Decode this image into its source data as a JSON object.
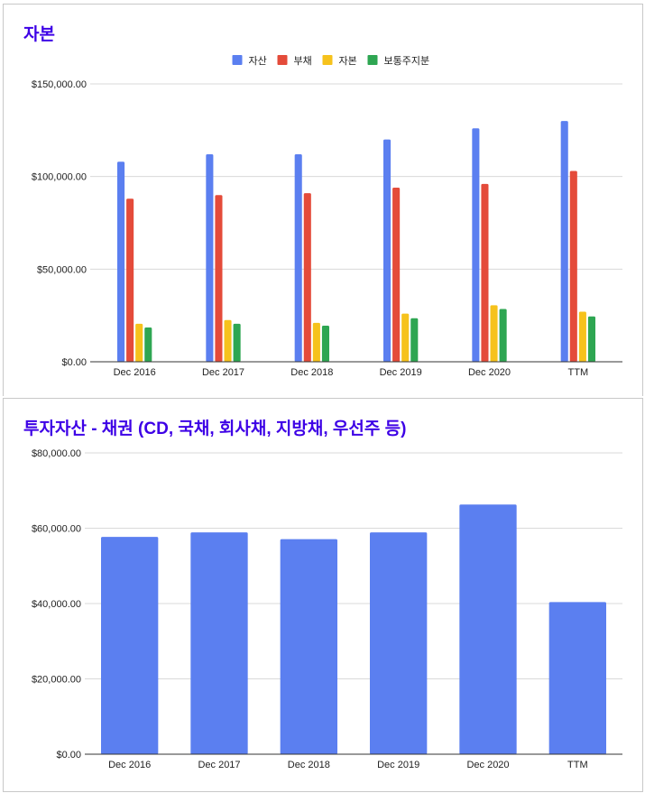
{
  "chart_data": [
    {
      "type": "bar",
      "title": "자본",
      "categories": [
        "Dec 2016",
        "Dec 2017",
        "Dec 2018",
        "Dec 2019",
        "Dec 2020",
        "TTM"
      ],
      "series": [
        {
          "name": "자산",
          "color": "#5b7ff0",
          "values": [
            108000,
            112000,
            112000,
            120000,
            126000,
            130000
          ]
        },
        {
          "name": "부채",
          "color": "#e44b3a",
          "values": [
            88000,
            90000,
            91000,
            94000,
            96000,
            103000
          ]
        },
        {
          "name": "자본",
          "color": "#f6c21c",
          "values": [
            20500,
            22500,
            21000,
            26000,
            30500,
            27000
          ]
        },
        {
          "name": "보통주지분",
          "color": "#2ea652",
          "values": [
            18500,
            20500,
            19500,
            23500,
            28500,
            24500
          ]
        }
      ],
      "yticks": [
        "$0.00",
        "$50,000.00",
        "$100,000.00",
        "$150,000.00"
      ],
      "ylim": [
        0,
        150000
      ],
      "legend": "top",
      "grid": true
    },
    {
      "type": "bar",
      "title": "투자자산 - 채권 (CD, 국채, 회사채, 지방채, 우선주 등)",
      "categories": [
        "Dec 2016",
        "Dec 2017",
        "Dec 2018",
        "Dec 2019",
        "Dec 2020",
        "TTM"
      ],
      "series": [
        {
          "color": "#5b7ff0",
          "values": [
            57700,
            58900,
            57100,
            58900,
            66300,
            40400
          ]
        }
      ],
      "yticks": [
        "$0.00",
        "$20,000.00",
        "$40,000.00",
        "$60,000.00",
        "$80,000.00"
      ],
      "ylim": [
        0,
        80000
      ],
      "grid": true
    }
  ]
}
